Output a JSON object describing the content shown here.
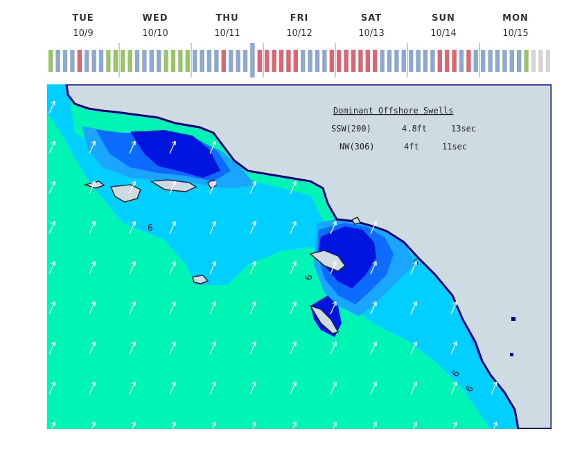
{
  "days": [
    {
      "name": "TUE",
      "date": "10/9"
    },
    {
      "name": "WED",
      "date": "10/10"
    },
    {
      "name": "THU",
      "date": "10/11"
    },
    {
      "name": "FRI",
      "date": "10/12"
    },
    {
      "name": "SAT",
      "date": "10/13"
    },
    {
      "name": "SUN",
      "date": "10/14"
    },
    {
      "name": "MON",
      "date": "10/15"
    }
  ],
  "timeline": {
    "colors": {
      "g": "#9bc46a",
      "b": "#8ea9d0",
      "r": "#dc6673",
      "x": "#d4d4d4"
    },
    "bars": "gbbbrbbbggggbbbbggggbbbbrbbbbrrrrrrbbbbrrrrrrrbbbbbbbbrrrbrbbbbbbbgxxx",
    "current_index": 28
  },
  "map": {
    "legend": {
      "title": "Dominant Offshore Swells",
      "rows": [
        {
          "dir": "SSW(200)",
          "height": "4.8ft",
          "period": "13sec"
        },
        {
          "dir": "NW(306)",
          "height": "4ft",
          "period": "11sec"
        }
      ]
    },
    "colors": {
      "land": "#cfdbe2",
      "sea_deep": "#00f5b5",
      "sea_mid": "#00cfff",
      "sea_blue1": "#1aa6ff",
      "sea_blue2": "#0b6cff",
      "sea_blue3": "#0016e0",
      "sea_darkest": "#00007e"
    },
    "contour_labels": [
      "6",
      "6",
      "6",
      "6",
      "6"
    ]
  }
}
